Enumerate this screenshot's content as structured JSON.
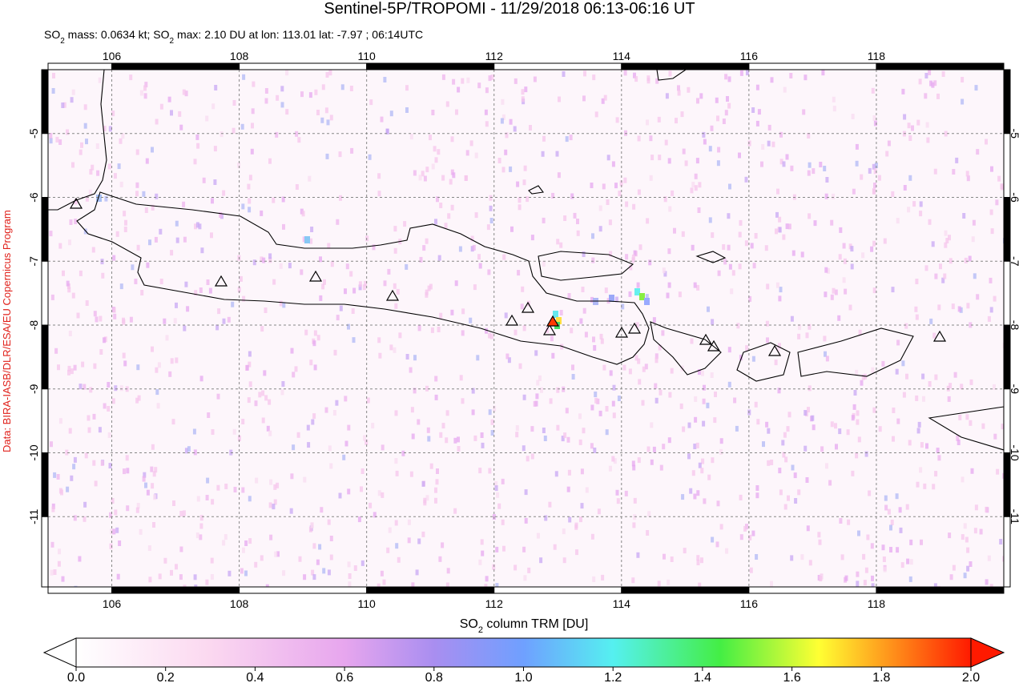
{
  "title": "Sentinel-5P/TROPOMI - 11/29/2018 06:13-06:16 UT",
  "subtitle": [
    "SO",
    "2",
    " mass: 0.0634 kt; SO",
    "2",
    " max: 2.10 DU at lon: 113.01 lat: -7.97 ; 06:14UTC"
  ],
  "credit": "Data: BIRA-IASB/DLR/ESA/EU Copernicus Program",
  "map": {
    "xlim": [
      105,
      120
    ],
    "ylim": [
      -12.1,
      -4
    ],
    "xticks": [
      106,
      108,
      110,
      112,
      114,
      116,
      118
    ],
    "yticks": [
      -5,
      -6,
      -7,
      -8,
      -9,
      -10,
      -11
    ]
  },
  "colorbar": {
    "label": [
      "SO",
      "2",
      " column TRM [DU]"
    ],
    "lim": [
      0,
      2
    ],
    "ticks": [
      {
        "value": 0,
        "label": "0.0"
      },
      {
        "value": 0.2,
        "label": "0.2"
      },
      {
        "value": 0.4,
        "label": "0.4"
      },
      {
        "value": 0.6,
        "label": "0.6"
      },
      {
        "value": 0.8,
        "label": "0.8"
      },
      {
        "value": 1,
        "label": "1.0"
      },
      {
        "value": 1.2,
        "label": "1.2"
      },
      {
        "value": 1.4,
        "label": "1.4"
      },
      {
        "value": 1.6,
        "label": "1.6"
      },
      {
        "value": 1.8,
        "label": "1.8"
      },
      {
        "value": 2,
        "label": "2.0"
      }
    ]
  }
}
